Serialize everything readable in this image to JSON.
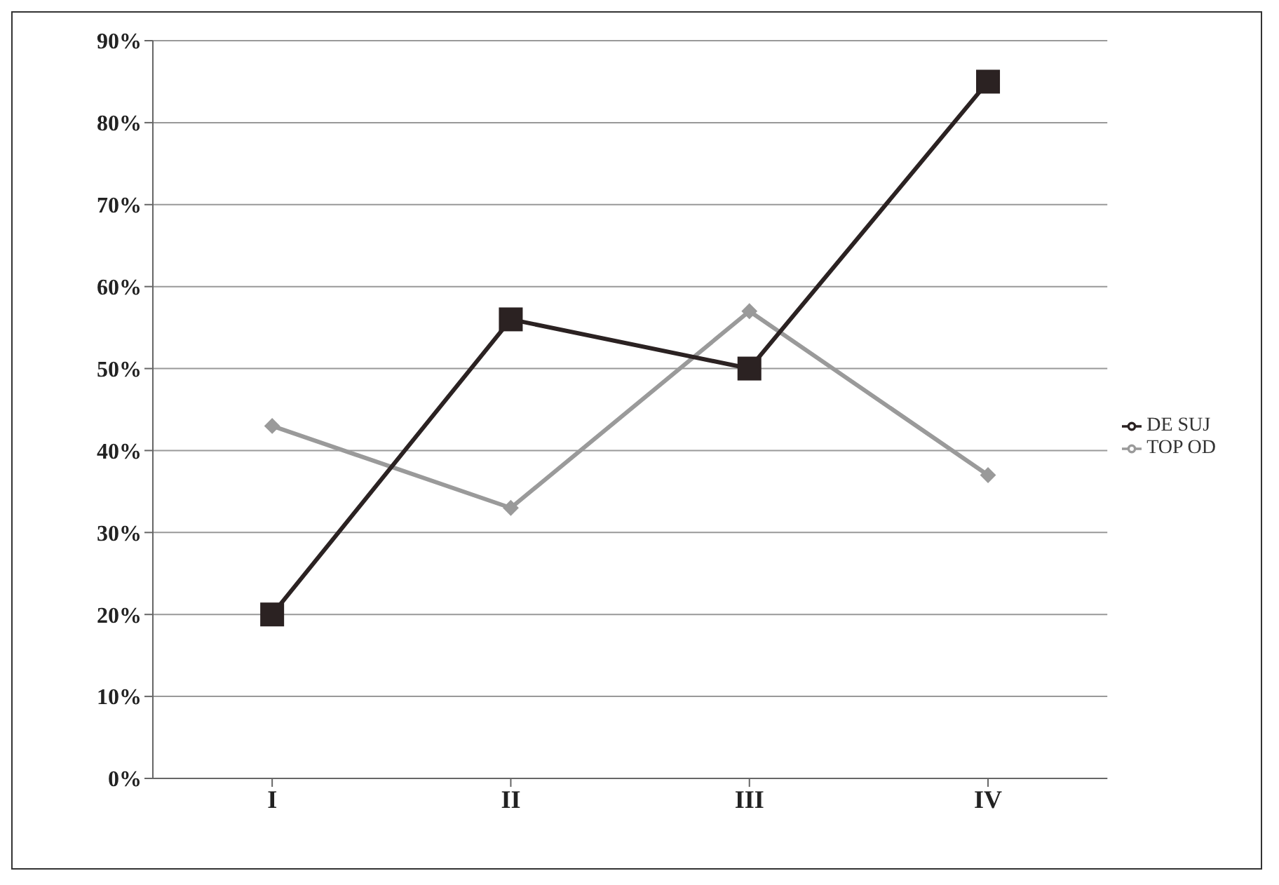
{
  "chart_data": {
    "type": "line",
    "categories": [
      "I",
      "II",
      "III",
      "IV"
    ],
    "series": [
      {
        "name": "TOP OD",
        "color": "#9a9a9a",
        "marker": "diamond",
        "values": [
          43,
          33,
          57,
          37
        ]
      },
      {
        "name": "DE SUJ",
        "color": "#2b2222",
        "marker": "square",
        "values": [
          20,
          56,
          50,
          85
        ]
      }
    ],
    "ylim": [
      0,
      90
    ],
    "yticks": [
      {
        "value": 0,
        "label": "0%"
      },
      {
        "value": 10,
        "label": "10%"
      },
      {
        "value": 20,
        "label": "20%"
      },
      {
        "value": 30,
        "label": "30%"
      },
      {
        "value": 40,
        "label": "40%"
      },
      {
        "value": 50,
        "label": "50%"
      },
      {
        "value": 60,
        "label": "60%"
      },
      {
        "value": 70,
        "label": "70%"
      },
      {
        "value": 80,
        "label": "80%"
      },
      {
        "value": 90,
        "label": "90%"
      }
    ],
    "grid": "y",
    "legend": "right",
    "line_style": "solid"
  }
}
